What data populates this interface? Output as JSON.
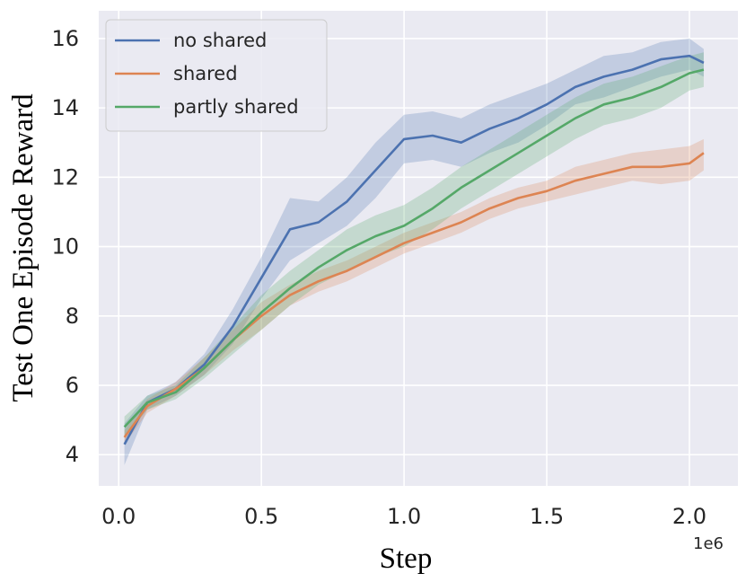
{
  "chart_data": {
    "type": "line",
    "title": "",
    "xlabel": "Step",
    "ylabel": "Test One Episode Reward",
    "x_offset_label": "1e6",
    "xlim": [
      -0.07,
      2.17
    ],
    "ylim": [
      3.1,
      16.8
    ],
    "xticks": [
      0.0,
      0.5,
      1.0,
      1.5,
      2.0
    ],
    "xtick_labels": [
      "0.0",
      "0.5",
      "1.0",
      "1.5",
      "2.0"
    ],
    "yticks": [
      4,
      6,
      8,
      10,
      12,
      14,
      16
    ],
    "ytick_labels": [
      "4",
      "6",
      "8",
      "10",
      "12",
      "14",
      "16"
    ],
    "grid": true,
    "background": "#eaeaf2",
    "legend_position": "top-left",
    "shaded_band": "spread across runs around each line",
    "x": [
      0.02,
      0.1,
      0.2,
      0.3,
      0.4,
      0.5,
      0.6,
      0.7,
      0.8,
      0.9,
      1.0,
      1.1,
      1.2,
      1.3,
      1.4,
      1.5,
      1.6,
      1.7,
      1.8,
      1.9,
      2.0,
      2.05
    ],
    "series": [
      {
        "name": "no shared",
        "color": "#4c72b0",
        "values": [
          4.3,
          5.5,
          5.9,
          6.6,
          7.7,
          9.1,
          10.5,
          10.7,
          11.3,
          12.2,
          13.1,
          13.2,
          13.0,
          13.4,
          13.7,
          14.1,
          14.6,
          14.9,
          15.1,
          15.4,
          15.5,
          15.3
        ],
        "band_lower": [
          3.7,
          5.3,
          5.7,
          6.3,
          7.2,
          8.5,
          9.6,
          10.1,
          10.6,
          11.4,
          12.4,
          12.5,
          12.3,
          12.7,
          13.0,
          13.5,
          14.1,
          14.3,
          14.6,
          14.9,
          15.1,
          14.9
        ],
        "band_upper": [
          4.9,
          5.7,
          6.1,
          6.9,
          8.2,
          9.7,
          11.4,
          11.3,
          12.0,
          13.0,
          13.8,
          13.9,
          13.7,
          14.1,
          14.4,
          14.7,
          15.1,
          15.5,
          15.6,
          15.9,
          16.0,
          15.7
        ]
      },
      {
        "name": "shared",
        "color": "#dd8452",
        "values": [
          4.5,
          5.4,
          5.9,
          6.5,
          7.3,
          8.0,
          8.6,
          9.0,
          9.3,
          9.7,
          10.1,
          10.4,
          10.7,
          11.1,
          11.4,
          11.6,
          11.9,
          12.1,
          12.3,
          12.3,
          12.4,
          12.7
        ],
        "band_lower": [
          4.3,
          5.2,
          5.7,
          6.3,
          7.0,
          7.6,
          8.3,
          8.7,
          9.0,
          9.4,
          9.8,
          10.1,
          10.4,
          10.8,
          11.1,
          11.3,
          11.5,
          11.7,
          11.9,
          11.8,
          11.9,
          12.2
        ],
        "band_upper": [
          4.7,
          5.6,
          6.1,
          6.8,
          7.6,
          8.4,
          8.9,
          9.3,
          9.6,
          10.0,
          10.4,
          10.7,
          11.0,
          11.4,
          11.7,
          11.9,
          12.3,
          12.5,
          12.7,
          12.8,
          12.9,
          13.1
        ]
      },
      {
        "name": "partly shared",
        "color": "#55a868",
        "values": [
          4.8,
          5.5,
          5.8,
          6.5,
          7.3,
          8.1,
          8.8,
          9.4,
          9.9,
          10.3,
          10.6,
          11.1,
          11.7,
          12.2,
          12.7,
          13.2,
          13.7,
          14.1,
          14.3,
          14.6,
          15.0,
          15.1
        ],
        "band_lower": [
          4.5,
          5.3,
          5.6,
          6.2,
          6.9,
          7.6,
          8.3,
          8.9,
          9.3,
          9.7,
          10.0,
          10.5,
          11.1,
          11.6,
          12.1,
          12.6,
          13.1,
          13.5,
          13.7,
          14.0,
          14.5,
          14.6
        ],
        "band_upper": [
          5.1,
          5.7,
          6.0,
          6.8,
          7.7,
          8.6,
          9.3,
          9.9,
          10.5,
          10.9,
          11.2,
          11.7,
          12.3,
          12.8,
          13.3,
          13.8,
          14.3,
          14.7,
          14.9,
          15.2,
          15.5,
          15.6
        ]
      }
    ]
  }
}
